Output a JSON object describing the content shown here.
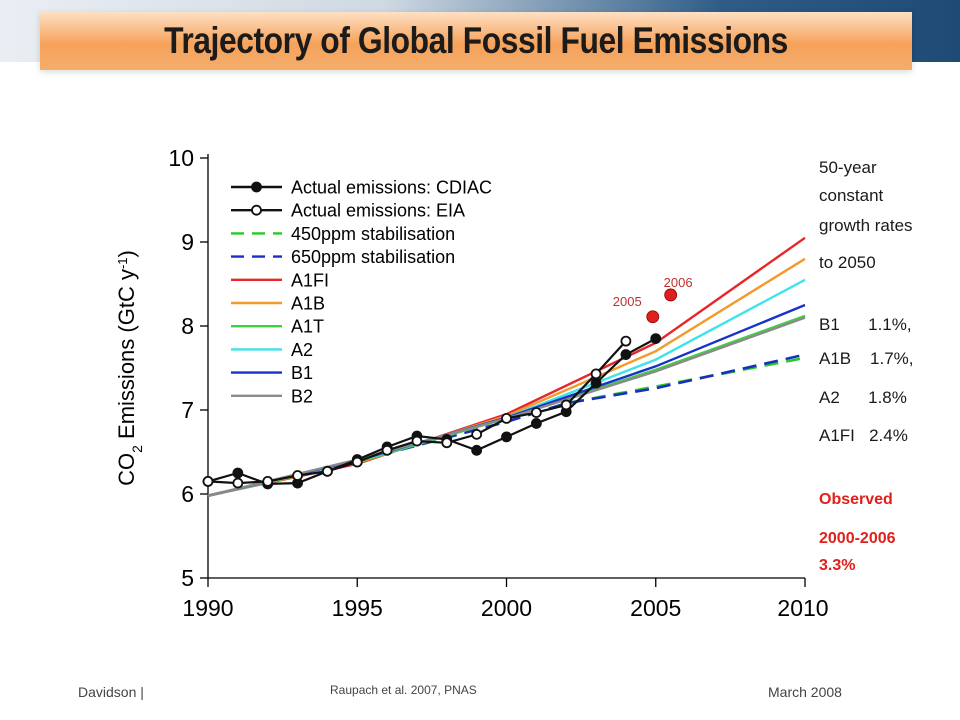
{
  "slide": {
    "title": "Trajectory of Global Fossil Fuel Emissions",
    "footer_left": "Davidson |",
    "footer_center": "Raupach et al. 2007, PNAS",
    "footer_right": "March 2008"
  },
  "sidebar": {
    "heading_lines": [
      "50-year",
      "constant",
      "growth rates",
      "to 2050"
    ],
    "rates": [
      "B1      1.1%,",
      "A1B    1.7%,",
      "A2      1.8%",
      "A1FI   2.4%"
    ],
    "observed_label": "Observed",
    "observed_period": "2000-2006",
    "observed_rate": "3.3%"
  },
  "chart_data": {
    "type": "line",
    "ylabel": "CO2 Emissions (GtC y-1)",
    "xlim": [
      1990,
      2010
    ],
    "ylim": [
      5,
      10
    ],
    "xticks": [
      1990,
      1995,
      2000,
      2005,
      2010
    ],
    "yticks": [
      5,
      6,
      7,
      8,
      9,
      10
    ],
    "grid": false,
    "legend_position": "top-left",
    "series": [
      {
        "name": "Actual emissions: CDIAC",
        "color": "#111111",
        "style": "marker-filled",
        "x": [
          1990,
          1991,
          1992,
          1993,
          1994,
          1995,
          1996,
          1997,
          1998,
          1999,
          2000,
          2001,
          2002,
          2003,
          2004,
          2005
        ],
        "y": [
          6.15,
          6.25,
          6.12,
          6.13,
          6.27,
          6.41,
          6.56,
          6.69,
          6.65,
          6.52,
          6.68,
          6.84,
          6.98,
          7.32,
          7.66,
          7.85
        ]
      },
      {
        "name": "Actual emissions: EIA",
        "color": "#111111",
        "style": "marker-open",
        "x": [
          1990,
          1991,
          1992,
          1993,
          1994,
          1995,
          1996,
          1997,
          1998,
          1999,
          2000,
          2001,
          2002,
          2003,
          2004
        ],
        "y": [
          6.15,
          6.13,
          6.15,
          6.22,
          6.27,
          6.38,
          6.52,
          6.63,
          6.61,
          6.71,
          6.9,
          6.97,
          7.06,
          7.43,
          7.82
        ]
      },
      {
        "name": "450ppm stabilisation",
        "color": "#22cc22",
        "style": "dashed",
        "x": [
          1990,
          1995,
          2000,
          2002,
          2005,
          2010
        ],
        "y": [
          5.98,
          6.39,
          6.86,
          7.08,
          7.28,
          7.62
        ]
      },
      {
        "name": "650ppm stabilisation",
        "color": "#1a2fbf",
        "style": "dashed",
        "x": [
          1990,
          1995,
          2000,
          2002,
          2005,
          2010
        ],
        "y": [
          5.98,
          6.39,
          6.86,
          7.08,
          7.26,
          7.66
        ]
      },
      {
        "name": "A1FI",
        "color": "#e8262a",
        "style": "solid",
        "x": [
          1990,
          1995,
          2000,
          2005,
          2010
        ],
        "y": [
          5.98,
          6.36,
          6.95,
          7.8,
          9.05
        ]
      },
      {
        "name": "A1B",
        "color": "#f39a2d",
        "style": "solid",
        "x": [
          1990,
          1995,
          2000,
          2005,
          2010
        ],
        "y": [
          5.98,
          6.37,
          6.93,
          7.7,
          8.8
        ]
      },
      {
        "name": "A1T",
        "color": "#3fd23f",
        "style": "solid",
        "x": [
          1990,
          1995,
          2000,
          2005,
          2010
        ],
        "y": [
          5.98,
          6.38,
          6.9,
          7.48,
          8.12
        ]
      },
      {
        "name": "A2",
        "color": "#3ee4ea",
        "style": "solid",
        "x": [
          1990,
          1995,
          2000,
          2005,
          2010
        ],
        "y": [
          5.98,
          6.39,
          6.91,
          7.6,
          8.55
        ]
      },
      {
        "name": "B1",
        "color": "#1832c8",
        "style": "solid",
        "x": [
          1990,
          1995,
          2000,
          2005,
          2010
        ],
        "y": [
          5.98,
          6.4,
          6.91,
          7.52,
          8.25
        ]
      },
      {
        "name": "B2",
        "color": "#8a8a8a",
        "style": "solid",
        "x": [
          1990,
          1995,
          2000,
          2005,
          2010
        ],
        "y": [
          5.98,
          6.41,
          6.9,
          7.46,
          8.1
        ]
      }
    ],
    "highlight_points": [
      {
        "label": "2005",
        "x": 2004.9,
        "y": 8.11,
        "color": "#e0201c"
      },
      {
        "label": "2006",
        "x": 2005.5,
        "y": 8.37,
        "color": "#e0201c"
      }
    ]
  }
}
